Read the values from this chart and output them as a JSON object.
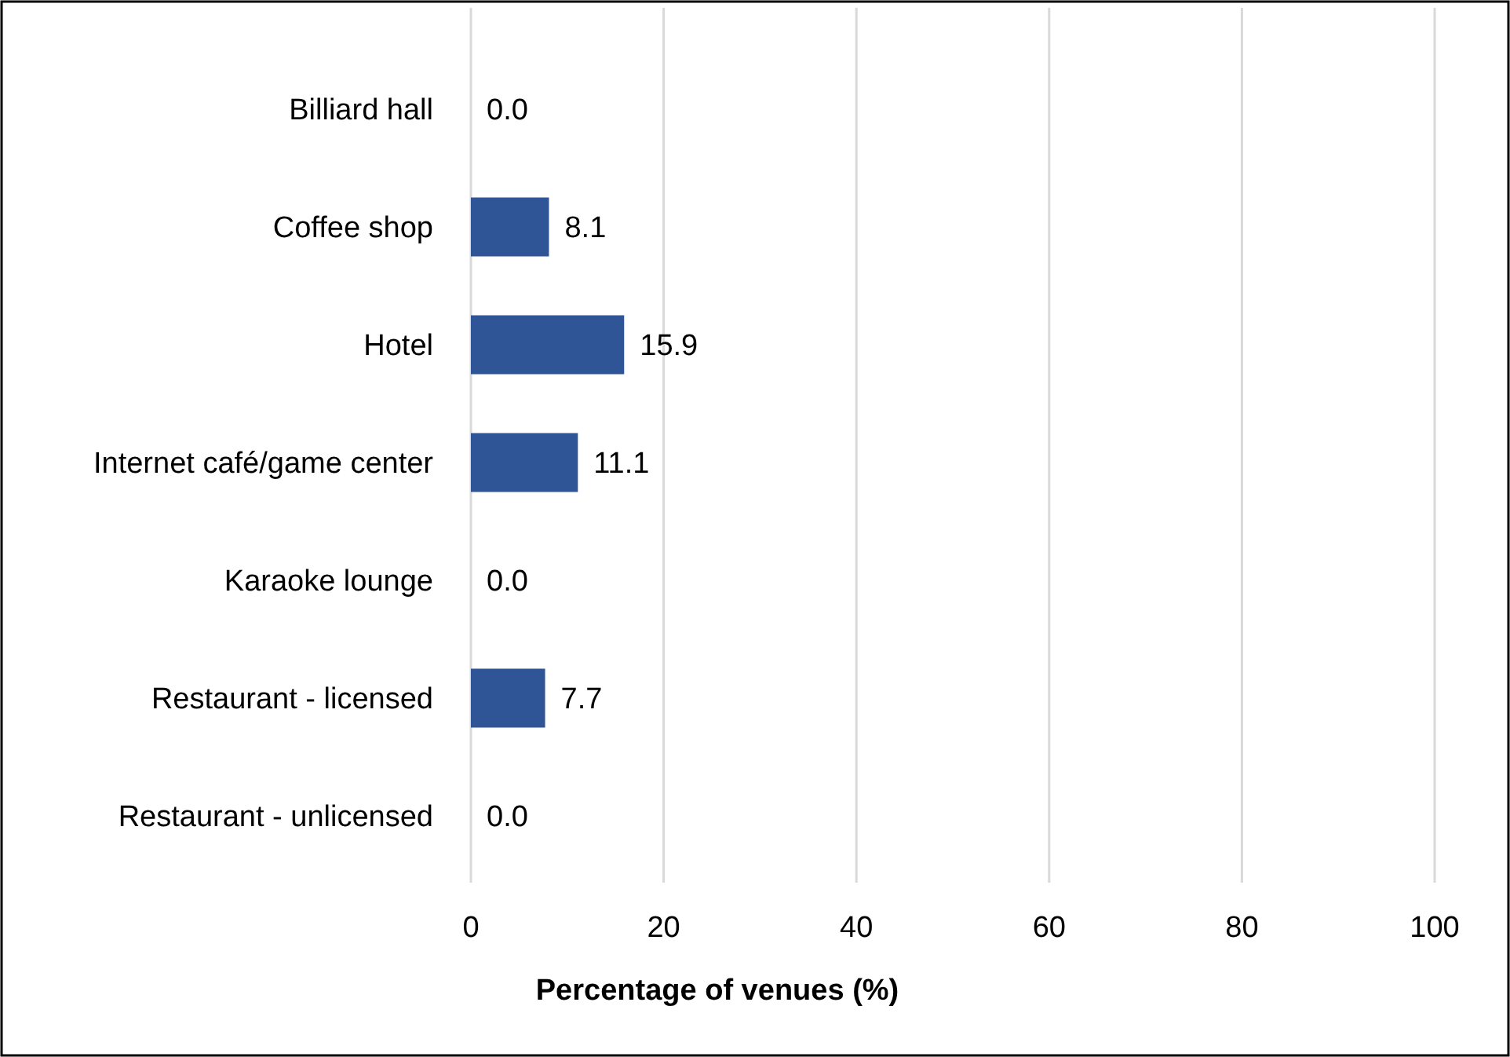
{
  "chart_data": {
    "type": "bar",
    "orientation": "horizontal",
    "xlabel": "Percentage of venues (%)",
    "categories": [
      "Billiard hall",
      "Coffee shop",
      "Hotel",
      "Internet café/game center",
      "Karaoke lounge",
      "Restaurant - licensed",
      "Restaurant - unlicensed"
    ],
    "values": [
      0,
      8.1,
      15.9,
      11.1,
      0,
      7.7,
      0
    ],
    "value_labels": [
      "0.0",
      "8.1",
      "15.9",
      "11.1",
      "0.0",
      "7.7",
      "0.0"
    ],
    "color": "#2f5597",
    "xlim": [
      0,
      100
    ],
    "xticks": [
      0,
      20,
      40,
      60,
      80,
      100
    ],
    "grid": "x"
  }
}
